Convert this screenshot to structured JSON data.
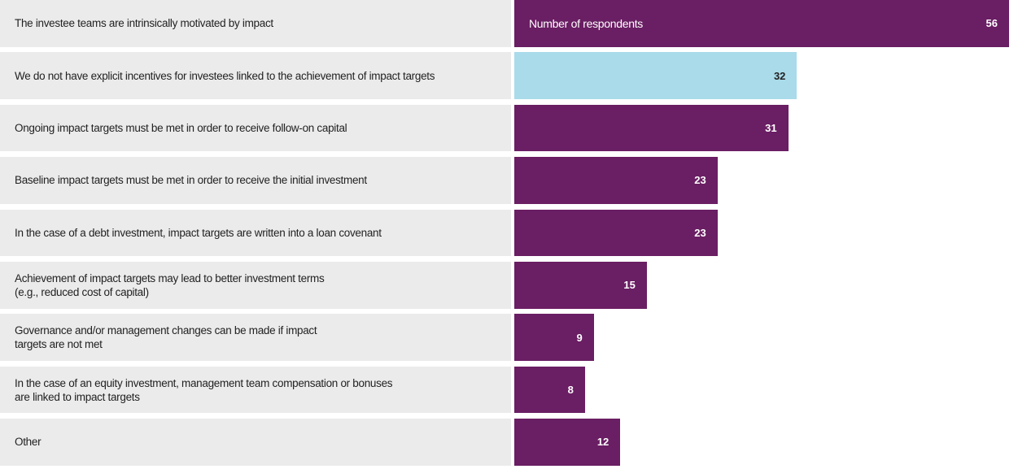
{
  "chart_data": {
    "type": "bar",
    "orientation": "horizontal",
    "annotation": "Number of respondents",
    "categories": [
      "The investee teams are intrinsically motivated by impact",
      "We do not have explicit incentives for investees linked to the achievement of impact targets",
      "Ongoing impact targets must be met in order to receive follow-on capital",
      "Baseline impact targets must be met in order to receive the initial investment",
      "In the case of a debt investment, impact targets are written into a loan covenant",
      "Achievement of impact targets may lead to better investment terms\n(e.g., reduced cost of capital)",
      "Governance and/or management changes can be made if impact\ntargets are not met",
      "In the case of an equity investment, management team compensation or bonuses\nare linked to impact targets",
      "Other"
    ],
    "values": [
      56,
      32,
      31,
      23,
      23,
      15,
      9,
      8,
      12
    ],
    "colors": [
      "#6a1e63",
      "#a9dbea",
      "#6a1e63",
      "#6a1e63",
      "#6a1e63",
      "#6a1e63",
      "#6a1e63",
      "#6a1e63",
      "#6a1e63"
    ],
    "xlim": [
      0,
      56
    ]
  }
}
